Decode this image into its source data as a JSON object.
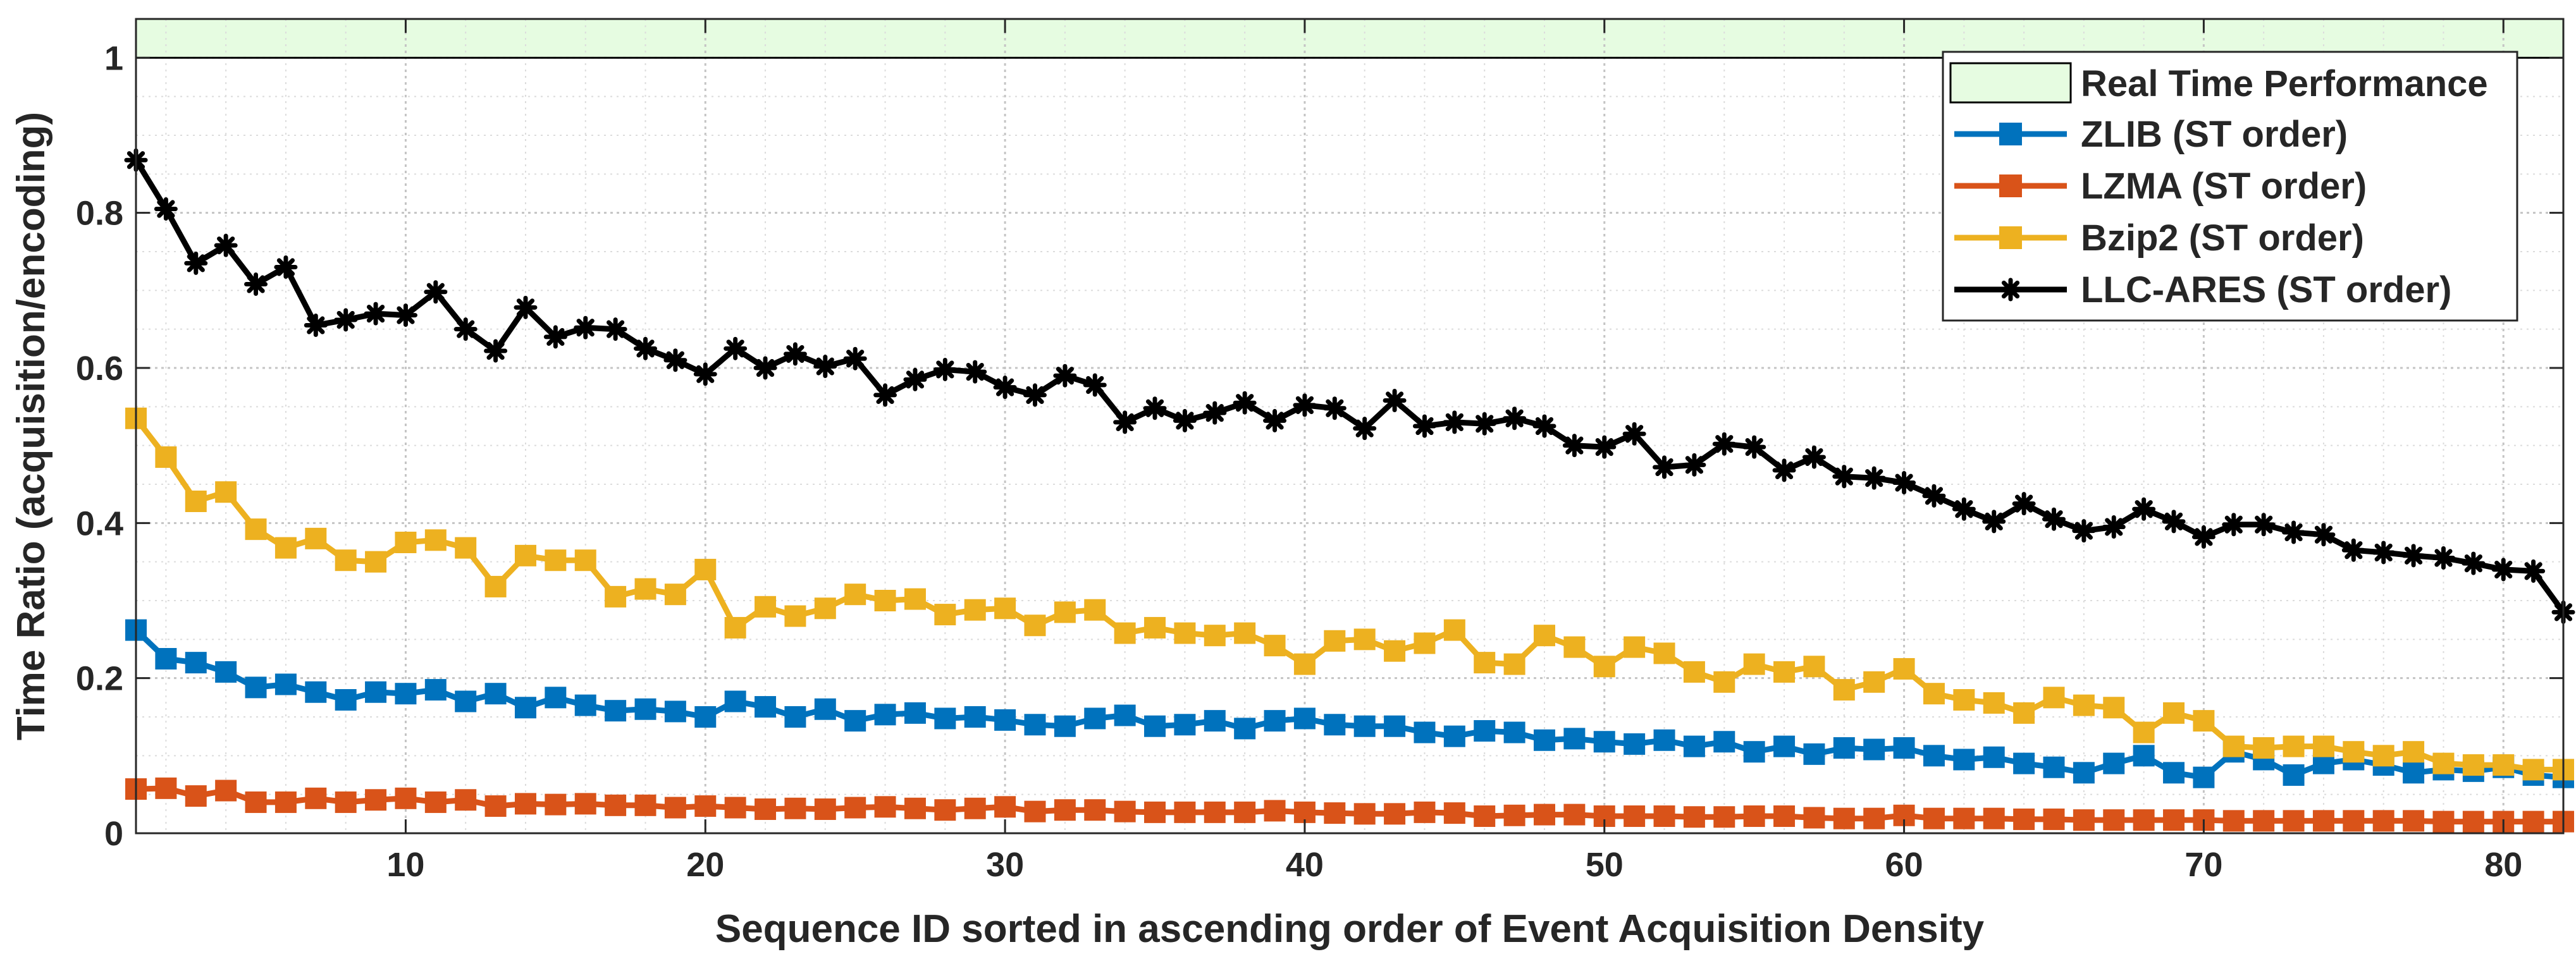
{
  "chart_data": {
    "type": "line",
    "title": "",
    "xlabel": "Sequence ID sorted in ascending order of Event Acquisition Density",
    "ylabel": "Time Ratio (acquisition/encoding)",
    "xlim": [
      1,
      82
    ],
    "ylim": [
      0,
      1.05
    ],
    "x_ticks": [
      10,
      20,
      30,
      40,
      50,
      60,
      70,
      80
    ],
    "y_ticks": [
      0,
      0.2,
      0.4,
      0.6,
      0.8,
      1
    ],
    "y_tick_labels": [
      "0",
      "0.2",
      "0.4",
      "0.6",
      "0.8",
      "1"
    ],
    "grid": true,
    "legend_position": "top-right",
    "region": {
      "name": "Real Time Performance",
      "y_from": 1.0,
      "y_to": 1.05,
      "color": "#e6fce1"
    },
    "x": [
      1,
      2,
      3,
      4,
      5,
      6,
      7,
      8,
      9,
      10,
      11,
      12,
      13,
      14,
      15,
      16,
      17,
      18,
      19,
      20,
      21,
      22,
      23,
      24,
      25,
      26,
      27,
      28,
      29,
      30,
      31,
      32,
      33,
      34,
      35,
      36,
      37,
      38,
      39,
      40,
      41,
      42,
      43,
      44,
      45,
      46,
      47,
      48,
      49,
      50,
      51,
      52,
      53,
      54,
      55,
      56,
      57,
      58,
      59,
      60,
      61,
      62,
      63,
      64,
      65,
      66,
      67,
      68,
      69,
      70,
      71,
      72,
      73,
      74,
      75,
      76,
      77,
      78,
      79,
      80,
      81,
      82
    ],
    "series": [
      {
        "name": "ZLIB (ST order)",
        "color": "#0072bd",
        "marker": "square",
        "values": [
          0.262,
          0.225,
          0.22,
          0.208,
          0.188,
          0.192,
          0.182,
          0.172,
          0.182,
          0.18,
          0.185,
          0.17,
          0.18,
          0.162,
          0.175,
          0.165,
          0.158,
          0.16,
          0.157,
          0.15,
          0.17,
          0.163,
          0.15,
          0.16,
          0.145,
          0.153,
          0.155,
          0.148,
          0.15,
          0.146,
          0.14,
          0.138,
          0.148,
          0.152,
          0.138,
          0.14,
          0.145,
          0.135,
          0.145,
          0.148,
          0.14,
          0.138,
          0.138,
          0.13,
          0.125,
          0.132,
          0.13,
          0.12,
          0.122,
          0.118,
          0.115,
          0.12,
          0.112,
          0.118,
          0.105,
          0.112,
          0.102,
          0.11,
          0.108,
          0.11,
          0.1,
          0.095,
          0.098,
          0.09,
          0.085,
          0.078,
          0.09,
          0.1,
          0.078,
          0.072,
          0.105,
          0.095,
          0.075,
          0.09,
          0.095,
          0.088,
          0.078,
          0.082,
          0.08,
          0.085,
          0.075,
          0.072
        ]
      },
      {
        "name": "LZMA (ST order)",
        "color": "#d95319",
        "marker": "square",
        "values": [
          0.057,
          0.058,
          0.048,
          0.055,
          0.04,
          0.04,
          0.045,
          0.04,
          0.043,
          0.045,
          0.04,
          0.043,
          0.035,
          0.038,
          0.037,
          0.038,
          0.036,
          0.036,
          0.033,
          0.035,
          0.033,
          0.031,
          0.032,
          0.031,
          0.033,
          0.034,
          0.032,
          0.03,
          0.032,
          0.034,
          0.028,
          0.03,
          0.03,
          0.028,
          0.027,
          0.027,
          0.027,
          0.027,
          0.029,
          0.027,
          0.026,
          0.025,
          0.025,
          0.027,
          0.026,
          0.022,
          0.023,
          0.024,
          0.024,
          0.022,
          0.022,
          0.022,
          0.021,
          0.021,
          0.022,
          0.022,
          0.02,
          0.019,
          0.019,
          0.023,
          0.019,
          0.019,
          0.019,
          0.018,
          0.018,
          0.017,
          0.017,
          0.017,
          0.017,
          0.017,
          0.016,
          0.016,
          0.016,
          0.016,
          0.016,
          0.016,
          0.016,
          0.015,
          0.015,
          0.015,
          0.015,
          0.015
        ]
      },
      {
        "name": "Bzip2 (ST order)",
        "color": "#edb120",
        "marker": "square",
        "values": [
          0.535,
          0.485,
          0.428,
          0.44,
          0.392,
          0.368,
          0.38,
          0.352,
          0.35,
          0.375,
          0.378,
          0.368,
          0.318,
          0.358,
          0.352,
          0.352,
          0.305,
          0.315,
          0.308,
          0.34,
          0.265,
          0.292,
          0.28,
          0.29,
          0.308,
          0.3,
          0.302,
          0.282,
          0.288,
          0.29,
          0.268,
          0.285,
          0.288,
          0.258,
          0.265,
          0.258,
          0.255,
          0.258,
          0.242,
          0.218,
          0.248,
          0.25,
          0.235,
          0.245,
          0.262,
          0.22,
          0.218,
          0.255,
          0.24,
          0.215,
          0.24,
          0.232,
          0.208,
          0.195,
          0.218,
          0.208,
          0.215,
          0.185,
          0.195,
          0.212,
          0.18,
          0.172,
          0.168,
          0.155,
          0.175,
          0.165,
          0.162,
          0.13,
          0.155,
          0.145,
          0.112,
          0.11,
          0.112,
          0.112,
          0.105,
          0.1,
          0.105,
          0.09,
          0.088,
          0.088,
          0.082,
          0.082
        ]
      },
      {
        "name": "LLC-ARES (ST order)",
        "color": "#000000",
        "marker": "asterisk",
        "values": [
          0.868,
          0.805,
          0.735,
          0.758,
          0.708,
          0.73,
          0.655,
          0.662,
          0.67,
          0.668,
          0.698,
          0.65,
          0.622,
          0.678,
          0.64,
          0.652,
          0.65,
          0.625,
          0.61,
          0.592,
          0.625,
          0.6,
          0.618,
          0.602,
          0.612,
          0.565,
          0.585,
          0.598,
          0.595,
          0.575,
          0.565,
          0.59,
          0.578,
          0.53,
          0.548,
          0.532,
          0.542,
          0.555,
          0.532,
          0.552,
          0.548,
          0.522,
          0.558,
          0.525,
          0.53,
          0.528,
          0.535,
          0.525,
          0.5,
          0.498,
          0.515,
          0.472,
          0.475,
          0.502,
          0.498,
          0.468,
          0.485,
          0.46,
          0.458,
          0.452,
          0.435,
          0.418,
          0.402,
          0.425,
          0.405,
          0.39,
          0.395,
          0.418,
          0.402,
          0.382,
          0.398,
          0.398,
          0.388,
          0.385,
          0.365,
          0.362,
          0.358,
          0.355,
          0.348,
          0.34,
          0.338,
          0.285
        ]
      }
    ]
  }
}
